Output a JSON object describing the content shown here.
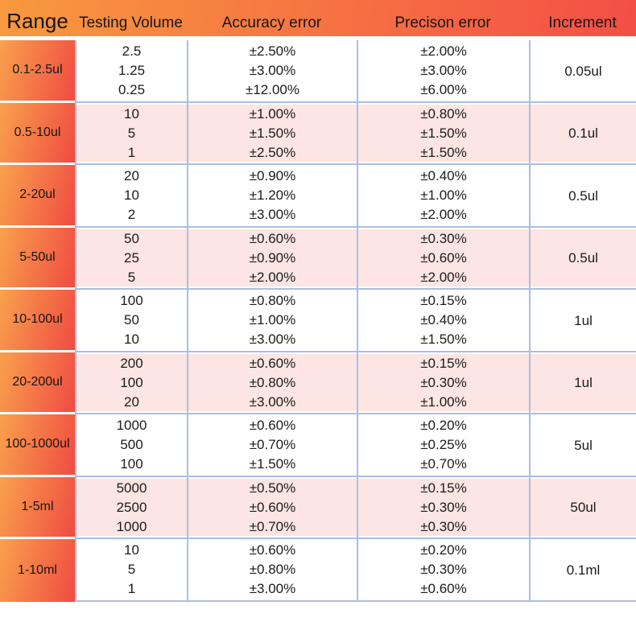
{
  "header": {
    "range": "Range",
    "testing_volume": "Testing Volume",
    "accuracy_error": "Accuracy error",
    "precision_error": "Precison error",
    "increment": "Increment"
  },
  "chart_data": {
    "type": "table",
    "columns": [
      "Range",
      "Testing Volume",
      "Accuracy error",
      "Precison error",
      "Increment"
    ],
    "groups": [
      {
        "range": "0.1-2.5ul",
        "shaded": false,
        "volumes": [
          "2.5",
          "1.25",
          "0.25"
        ],
        "accuracy": [
          "±2.50%",
          "±3.00%",
          "±12.00%"
        ],
        "precision": [
          "±2.00%",
          "±3.00%",
          "±6.00%"
        ],
        "increment": "0.05ul"
      },
      {
        "range": "0.5-10ul",
        "shaded": true,
        "volumes": [
          "10",
          "5",
          "1"
        ],
        "accuracy": [
          "±1.00%",
          "±1.50%",
          "±2.50%"
        ],
        "precision": [
          "±0.80%",
          "±1.50%",
          "±1.50%"
        ],
        "increment": "0.1ul"
      },
      {
        "range": "2-20ul",
        "shaded": false,
        "volumes": [
          "20",
          "10",
          "2"
        ],
        "accuracy": [
          "±0.90%",
          "±1.20%",
          "±3.00%"
        ],
        "precision": [
          "±0.40%",
          "±1.00%",
          "±2.00%"
        ],
        "increment": "0.5ul"
      },
      {
        "range": "5-50ul",
        "shaded": true,
        "volumes": [
          "50",
          "25",
          "5"
        ],
        "accuracy": [
          "±0.60%",
          "±0.90%",
          "±2.00%"
        ],
        "precision": [
          "±0.30%",
          "±0.60%",
          "±2.00%"
        ],
        "increment": "0.5ul"
      },
      {
        "range": "10-100ul",
        "shaded": false,
        "volumes": [
          "100",
          "50",
          "10"
        ],
        "accuracy": [
          "±0.80%",
          "±1.00%",
          "±3.00%"
        ],
        "precision": [
          "±0.15%",
          "±0.40%",
          "±1.50%"
        ],
        "increment": "1ul"
      },
      {
        "range": "20-200ul",
        "shaded": true,
        "volumes": [
          "200",
          "100",
          "20"
        ],
        "accuracy": [
          "±0.60%",
          "±0.80%",
          "±3.00%"
        ],
        "precision": [
          "±0.15%",
          "±0.30%",
          "±1.00%"
        ],
        "increment": "1ul"
      },
      {
        "range": "100-1000ul",
        "shaded": false,
        "volumes": [
          "1000",
          "500",
          "100"
        ],
        "accuracy": [
          "±0.60%",
          "±0.70%",
          "±1.50%"
        ],
        "precision": [
          "±0.20%",
          "±0.25%",
          "±0.70%"
        ],
        "increment": "5ul"
      },
      {
        "range": "1-5ml",
        "shaded": true,
        "volumes": [
          "5000",
          "2500",
          "1000"
        ],
        "accuracy": [
          "±0.50%",
          "±0.60%",
          "±0.70%"
        ],
        "precision": [
          "±0.15%",
          "±0.30%",
          "±0.30%"
        ],
        "increment": "50ul"
      },
      {
        "range": "1-10ml",
        "shaded": false,
        "volumes": [
          "10",
          "5",
          "1"
        ],
        "accuracy": [
          "±0.60%",
          "±0.80%",
          "±3.00%"
        ],
        "precision": [
          "±0.20%",
          "±0.30%",
          "±0.60%"
        ],
        "increment": "0.1ml"
      }
    ]
  },
  "colors": {
    "header_gradient_start": "#F8993F",
    "header_gradient_end": "#F44E46",
    "range_gradient_start": "#F9A14D",
    "range_gradient_end": "#F04B42",
    "shaded_row": "#FCE5E2",
    "divider_line": "#A9BFE3",
    "text": "#1B1B1B"
  }
}
